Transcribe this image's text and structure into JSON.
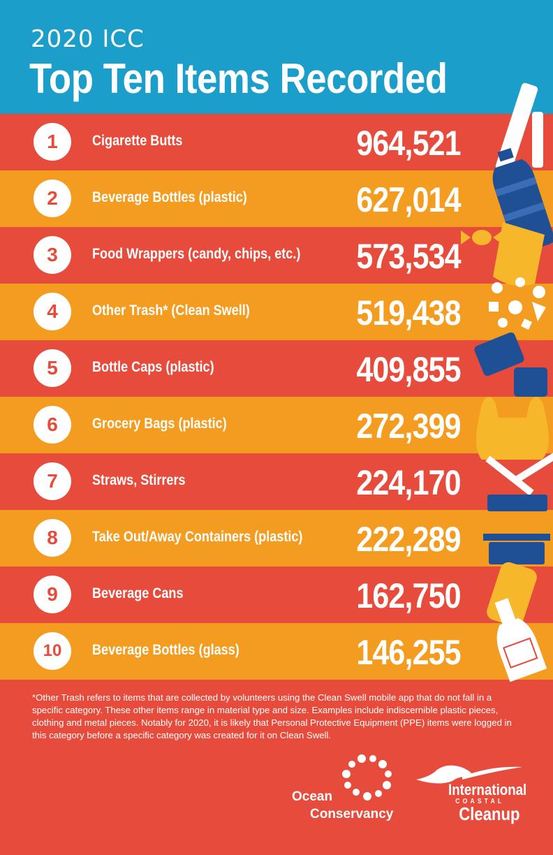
{
  "header": {
    "subtitle": "2020 ICC",
    "title": "Top Ten Items Recorded"
  },
  "colors": {
    "header_blue": "#1b9ec9",
    "row_red": "#e64b3c",
    "row_orange": "#f39c1f",
    "text_white": "#ffffff",
    "icon_blue": "#1f4f94",
    "icon_yellow": "#f6b72b"
  },
  "chart_data": {
    "type": "table",
    "title": "Top Ten Items Recorded",
    "subtitle": "2020 ICC",
    "rows": [
      {
        "rank": "1",
        "item": "Cigarette Butts",
        "count": "964,521",
        "value": 964521
      },
      {
        "rank": "2",
        "item": "Beverage Bottles (plastic)",
        "count": "627,014",
        "value": 627014
      },
      {
        "rank": "3",
        "item": "Food Wrappers (candy, chips, etc.)",
        "count": "573,534",
        "value": 573534
      },
      {
        "rank": "4",
        "item": "Other Trash* (Clean Swell)",
        "count": "519,438",
        "value": 519438
      },
      {
        "rank": "5",
        "item": "Bottle Caps (plastic)",
        "count": "409,855",
        "value": 409855
      },
      {
        "rank": "6",
        "item": "Grocery Bags (plastic)",
        "count": "272,399",
        "value": 272399
      },
      {
        "rank": "7",
        "item": "Straws, Stirrers",
        "count": "224,170",
        "value": 224170
      },
      {
        "rank": "8",
        "item": "Take Out/Away Containers (plastic)",
        "count": "222,289",
        "value": 222289
      },
      {
        "rank": "9",
        "item": "Beverage Cans",
        "count": "162,750",
        "value": 162750
      },
      {
        "rank": "10",
        "item": "Beverage Bottles (glass)",
        "count": "146,255",
        "value": 146255
      }
    ]
  },
  "icons": [
    "cigarette-icon",
    "plastic-bottle-icon",
    "candy-wrapper-icon",
    "trash-pieces-icon",
    "bottle-cap-icon",
    "grocery-bag-icon",
    "straw-icon",
    "takeout-container-icon",
    "beverage-can-icon",
    "glass-bottle-icon"
  ],
  "footnote": "*Other Trash refers to items that are collected by volunteers using the Clean Swell mobile app that do not fall in a specific category. These other items range in material type and size. Examples include indiscernible plastic pieces, clothing and metal pieces. Notably for 2020, it is likely that Personal Protective Equipment (PPE) items were logged in this category before a specific category was created for it on Clean Swell.",
  "logos": {
    "ocean_conservancy_line1": "Ocean",
    "ocean_conservancy_line2": "Conservancy",
    "icc_line1": "International",
    "icc_line2": "COASTAL",
    "icc_line3": "Cleanup"
  }
}
